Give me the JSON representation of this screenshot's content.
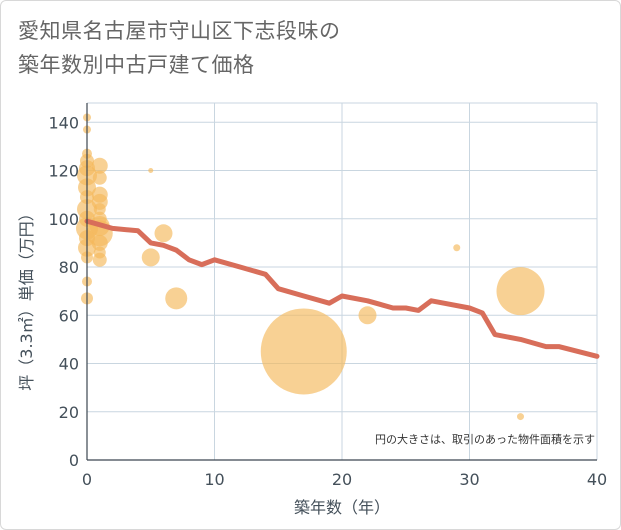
{
  "title_line1": "愛知県名古屋市守山区下志段味の",
  "title_line2": "築年数別中古戸建て価格",
  "chart_data": {
    "type": "scatter",
    "title": "愛知県名古屋市守山区下志段味の築年数別中古戸建て価格",
    "xlabel": "築年数（年）",
    "ylabel": "坪（3.3㎡）単価（万円）",
    "xlim": [
      0,
      40
    ],
    "ylim": [
      0,
      148
    ],
    "xticks": [
      0,
      10,
      20,
      30,
      40
    ],
    "yticks": [
      0,
      20,
      40,
      60,
      80,
      100,
      120,
      140
    ],
    "grid": true,
    "note": "円の大きさは、取引のあった物件面積を示す",
    "bubble_color": "#f5b85a",
    "line_color": "#d86e5a",
    "bubbles": [
      {
        "x": 0,
        "y": 142,
        "size": 4
      },
      {
        "x": 0,
        "y": 137,
        "size": 4
      },
      {
        "x": 0,
        "y": 127,
        "size": 5
      },
      {
        "x": 0,
        "y": 124,
        "size": 7
      },
      {
        "x": 0,
        "y": 121,
        "size": 8
      },
      {
        "x": 0,
        "y": 118,
        "size": 10
      },
      {
        "x": 0,
        "y": 113,
        "size": 9
      },
      {
        "x": 0,
        "y": 109,
        "size": 7
      },
      {
        "x": 0,
        "y": 104,
        "size": 10
      },
      {
        "x": 0,
        "y": 100,
        "size": 8
      },
      {
        "x": 0,
        "y": 96,
        "size": 11
      },
      {
        "x": 0,
        "y": 92,
        "size": 8
      },
      {
        "x": 0,
        "y": 88,
        "size": 9
      },
      {
        "x": 0,
        "y": 84,
        "size": 6
      },
      {
        "x": 0,
        "y": 74,
        "size": 5
      },
      {
        "x": 0,
        "y": 67,
        "size": 6
      },
      {
        "x": 1,
        "y": 122,
        "size": 8
      },
      {
        "x": 1,
        "y": 117,
        "size": 7
      },
      {
        "x": 1,
        "y": 110,
        "size": 8
      },
      {
        "x": 1,
        "y": 107,
        "size": 8
      },
      {
        "x": 1,
        "y": 104,
        "size": 6
      },
      {
        "x": 1,
        "y": 100,
        "size": 7
      },
      {
        "x": 1,
        "y": 97,
        "size": 10
      },
      {
        "x": 1,
        "y": 94,
        "size": 13
      },
      {
        "x": 1,
        "y": 90,
        "size": 8
      },
      {
        "x": 1,
        "y": 86,
        "size": 6
      },
      {
        "x": 1,
        "y": 83,
        "size": 7
      },
      {
        "x": 5,
        "y": 120,
        "size": 2.5
      },
      {
        "x": 5,
        "y": 84,
        "size": 9
      },
      {
        "x": 6,
        "y": 94,
        "size": 9
      },
      {
        "x": 7,
        "y": 67,
        "size": 11
      },
      {
        "x": 17,
        "y": 45,
        "size": 43
      },
      {
        "x": 22,
        "y": 60,
        "size": 9
      },
      {
        "x": 29,
        "y": 88,
        "size": 3.5
      },
      {
        "x": 34,
        "y": 70,
        "size": 24
      },
      {
        "x": 34,
        "y": 18,
        "size": 3.5
      }
    ],
    "trend": [
      {
        "x": 0,
        "y": 99
      },
      {
        "x": 2,
        "y": 96
      },
      {
        "x": 4,
        "y": 95
      },
      {
        "x": 5,
        "y": 90
      },
      {
        "x": 6,
        "y": 89
      },
      {
        "x": 7,
        "y": 87
      },
      {
        "x": 8,
        "y": 83
      },
      {
        "x": 9,
        "y": 81
      },
      {
        "x": 10,
        "y": 83
      },
      {
        "x": 12,
        "y": 80
      },
      {
        "x": 14,
        "y": 77
      },
      {
        "x": 15,
        "y": 71
      },
      {
        "x": 17,
        "y": 68
      },
      {
        "x": 19,
        "y": 65
      },
      {
        "x": 20,
        "y": 68
      },
      {
        "x": 22,
        "y": 66
      },
      {
        "x": 24,
        "y": 63
      },
      {
        "x": 25,
        "y": 63
      },
      {
        "x": 26,
        "y": 62
      },
      {
        "x": 27,
        "y": 66
      },
      {
        "x": 28,
        "y": 65
      },
      {
        "x": 30,
        "y": 63
      },
      {
        "x": 31,
        "y": 61
      },
      {
        "x": 32,
        "y": 52
      },
      {
        "x": 34,
        "y": 50
      },
      {
        "x": 36,
        "y": 47
      },
      {
        "x": 37,
        "y": 47
      },
      {
        "x": 40,
        "y": 43
      }
    ]
  }
}
